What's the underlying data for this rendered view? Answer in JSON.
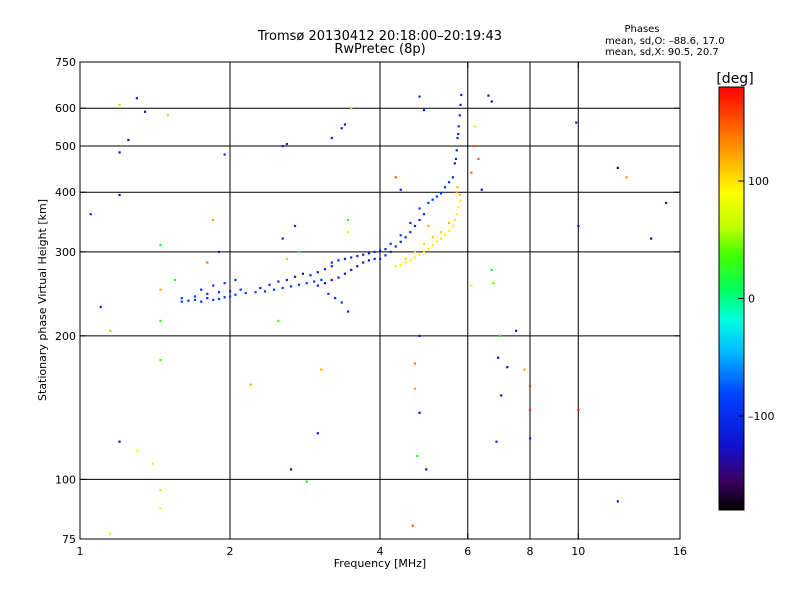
{
  "title_line1": "Tromsø 20130412 20:18:00–20:19:43",
  "title_line2": "RwPretec (8p)",
  "phases_info": {
    "heading": "Phases",
    "line_o": "mean, sd,O: –88.6, 17.0",
    "line_x": "mean, sd,X:  90.5, 20.7"
  },
  "colorbar": {
    "unit": "[deg]",
    "ticks": [
      {
        "value": 100,
        "label": "100"
      },
      {
        "value": 0,
        "label": "0"
      },
      {
        "value": -100,
        "label": "–100"
      }
    ],
    "range": [
      -180,
      180
    ]
  },
  "chart_data": {
    "type": "scatter",
    "title": "Tromsø 20130412 20:18:00–20:19:43",
    "subtitle": "RwPretec (8p)",
    "xlabel": "Frequency [MHz]",
    "ylabel": "Stationary phase Virtual Height [km]",
    "x_scale": "log",
    "y_scale": "log",
    "xlim": [
      1,
      16
    ],
    "ylim": [
      75,
      750
    ],
    "grid": true,
    "x_ticks": [
      {
        "value": 1,
        "label": "1"
      },
      {
        "value": 2,
        "label": "2"
      },
      {
        "value": 4,
        "label": "4"
      },
      {
        "value": 6,
        "label": "6"
      },
      {
        "value": 8,
        "label": "8"
      },
      {
        "value": 10,
        "label": "10"
      },
      {
        "value": 16,
        "label": "16"
      }
    ],
    "y_ticks": [
      {
        "value": 75,
        "label": "75"
      },
      {
        "value": 100,
        "label": "100"
      },
      {
        "value": 200,
        "label": "200"
      },
      {
        "value": 300,
        "label": "300"
      },
      {
        "value": 400,
        "label": "400"
      },
      {
        "value": 500,
        "label": "500"
      },
      {
        "value": 600,
        "label": "600"
      },
      {
        "value": 750,
        "label": "750"
      }
    ],
    "x_gridlines": [
      2,
      4,
      6,
      8,
      10
    ],
    "y_gridlines": [
      100,
      200,
      300,
      400,
      500,
      600
    ],
    "color_by": "phase [deg]",
    "points": [
      [
        1.6,
        236,
        -90
      ],
      [
        1.65,
        237,
        -95
      ],
      [
        1.7,
        238,
        -85
      ],
      [
        1.75,
        236,
        -90
      ],
      [
        1.8,
        240,
        -100
      ],
      [
        1.85,
        238,
        -92
      ],
      [
        1.9,
        239,
        -88
      ],
      [
        1.95,
        241,
        -96
      ],
      [
        2.0,
        242,
        -90
      ],
      [
        2.05,
        244,
        -85
      ],
      [
        1.6,
        240,
        -88
      ],
      [
        1.7,
        242,
        -94
      ],
      [
        1.8,
        245,
        -86
      ],
      [
        1.9,
        247,
        -92
      ],
      [
        2.0,
        248,
        -98
      ],
      [
        2.1,
        250,
        -93
      ],
      [
        1.75,
        250,
        -95
      ],
      [
        1.85,
        255,
        -100
      ],
      [
        1.95,
        258,
        -90
      ],
      [
        2.05,
        262,
        -95
      ],
      [
        2.15,
        246,
        -90
      ],
      [
        2.25,
        247,
        -88
      ],
      [
        2.35,
        248,
        -94
      ],
      [
        2.45,
        250,
        -92
      ],
      [
        2.55,
        252,
        -90
      ],
      [
        2.65,
        254,
        -95
      ],
      [
        2.75,
        256,
        -88
      ],
      [
        2.85,
        258,
        -90
      ],
      [
        2.95,
        260,
        -94
      ],
      [
        3.05,
        262,
        -92
      ],
      [
        2.3,
        252,
        -110
      ],
      [
        2.4,
        256,
        -108
      ],
      [
        2.5,
        260,
        -112
      ],
      [
        2.6,
        262,
        -106
      ],
      [
        2.7,
        266,
        -110
      ],
      [
        2.8,
        270,
        -114
      ],
      [
        2.9,
        268,
        -108
      ],
      [
        3.0,
        272,
        -112
      ],
      [
        3.1,
        276,
        -106
      ],
      [
        3.2,
        280,
        -110
      ],
      [
        3.0,
        255,
        -120
      ],
      [
        3.1,
        258,
        -118
      ],
      [
        3.2,
        262,
        -122
      ],
      [
        3.3,
        265,
        -116
      ],
      [
        3.4,
        270,
        -120
      ],
      [
        3.5,
        275,
        -118
      ],
      [
        3.6,
        280,
        -122
      ],
      [
        3.7,
        285,
        -116
      ],
      [
        3.8,
        288,
        -120
      ],
      [
        3.9,
        290,
        -118
      ],
      [
        3.2,
        285,
        -112
      ],
      [
        3.3,
        288,
        -110
      ],
      [
        3.4,
        290,
        -114
      ],
      [
        3.5,
        292,
        -108
      ],
      [
        3.6,
        294,
        -112
      ],
      [
        3.7,
        296,
        -110
      ],
      [
        3.8,
        298,
        -114
      ],
      [
        3.9,
        300,
        -108
      ],
      [
        4.0,
        302,
        -112
      ],
      [
        4.1,
        304,
        -110
      ],
      [
        3.15,
        245,
        -95
      ],
      [
        3.25,
        240,
        -100
      ],
      [
        3.35,
        235,
        -98
      ],
      [
        3.45,
        225,
        -100
      ],
      [
        4.0,
        290,
        -100
      ],
      [
        4.1,
        295,
        -105
      ],
      [
        4.2,
        300,
        -98
      ],
      [
        4.3,
        308,
        -102
      ],
      [
        4.4,
        315,
        -100
      ],
      [
        4.5,
        322,
        -104
      ],
      [
        4.6,
        330,
        -98
      ],
      [
        4.7,
        340,
        -102
      ],
      [
        4.8,
        350,
        -100
      ],
      [
        4.9,
        360,
        -104
      ],
      [
        4.2,
        312,
        -95
      ],
      [
        4.4,
        325,
        -92
      ],
      [
        4.6,
        345,
        -96
      ],
      [
        4.8,
        370,
        -94
      ],
      [
        5.0,
        380,
        -98
      ],
      [
        5.2,
        392,
        -92
      ],
      [
        5.4,
        410,
        -96
      ],
      [
        5.5,
        420,
        -94
      ],
      [
        5.3,
        398,
        -98
      ],
      [
        5.1,
        386,
        -92
      ],
      [
        5.6,
        430,
        -110
      ],
      [
        5.65,
        460,
        -108
      ],
      [
        5.7,
        490,
        -112
      ],
      [
        5.72,
        520,
        -106
      ],
      [
        5.75,
        550,
        -110
      ],
      [
        5.78,
        580,
        -114
      ],
      [
        5.8,
        610,
        -108
      ],
      [
        5.82,
        640,
        -112
      ],
      [
        5.68,
        470,
        -106
      ],
      [
        5.74,
        530,
        -110
      ],
      [
        4.3,
        280,
        95
      ],
      [
        4.4,
        282,
        92
      ],
      [
        4.5,
        285,
        98
      ],
      [
        4.6,
        288,
        94
      ],
      [
        4.7,
        292,
        96
      ],
      [
        4.8,
        296,
        92
      ],
      [
        4.9,
        300,
        98
      ],
      [
        5.0,
        304,
        94
      ],
      [
        5.1,
        310,
        96
      ],
      [
        5.2,
        316,
        92
      ],
      [
        5.3,
        320,
        98
      ],
      [
        5.4,
        326,
        94
      ],
      [
        5.5,
        332,
        96
      ],
      [
        5.6,
        340,
        92
      ],
      [
        5.65,
        350,
        98
      ],
      [
        5.7,
        360,
        94
      ],
      [
        5.75,
        372,
        96
      ],
      [
        5.8,
        384,
        92
      ],
      [
        5.78,
        395,
        110
      ],
      [
        5.72,
        410,
        115
      ],
      [
        4.5,
        290,
        105
      ],
      [
        4.7,
        300,
        108
      ],
      [
        4.9,
        312,
        104
      ],
      [
        5.1,
        322,
        110
      ],
      [
        5.3,
        330,
        106
      ],
      [
        5.5,
        345,
        112
      ],
      [
        5.7,
        400,
        120
      ],
      [
        6.1,
        440,
        140
      ],
      [
        6.3,
        470,
        145
      ],
      [
        6.15,
        500,
        150
      ],
      [
        1.45,
        250,
        120
      ],
      [
        1.55,
        262,
        25
      ],
      [
        1.8,
        285,
        140
      ],
      [
        2.6,
        290,
        110
      ],
      [
        3.5,
        600,
        110
      ],
      [
        3.2,
        520,
        -110
      ],
      [
        3.35,
        545,
        -115
      ],
      [
        3.4,
        555,
        -120
      ],
      [
        2.55,
        500,
        -118
      ],
      [
        2.6,
        505,
        -110
      ],
      [
        1.3,
        630,
        -110
      ],
      [
        1.35,
        590,
        -125
      ],
      [
        1.1,
        230,
        -100
      ],
      [
        1.05,
        360,
        -110
      ],
      [
        1.2,
        395,
        -135
      ],
      [
        1.2,
        485,
        -130
      ],
      [
        1.25,
        515,
        -140
      ],
      [
        1.95,
        480,
        -110
      ],
      [
        4.8,
        635,
        -110
      ],
      [
        4.9,
        595,
        -115
      ],
      [
        4.8,
        200,
        -120
      ],
      [
        4.7,
        175,
        140
      ],
      [
        4.7,
        155,
        120
      ],
      [
        4.8,
        138,
        -140
      ],
      [
        4.65,
        80,
        150
      ],
      [
        4.75,
        112,
        20
      ],
      [
        4.95,
        105,
        -130
      ],
      [
        6.6,
        638,
        -130
      ],
      [
        6.7,
        620,
        -140
      ],
      [
        6.4,
        405,
        -130
      ],
      [
        7.2,
        172,
        -125
      ],
      [
        7.0,
        150,
        -130
      ],
      [
        7.5,
        205,
        -110
      ],
      [
        7.8,
        170,
        120
      ],
      [
        8.0,
        157,
        160
      ],
      [
        8.0,
        140,
        165
      ],
      [
        8.0,
        122,
        -110
      ],
      [
        9.9,
        560,
        -110
      ],
      [
        10.0,
        340,
        -120
      ],
      [
        10.0,
        140,
        170
      ],
      [
        12,
        450,
        -130
      ],
      [
        12.5,
        430,
        130
      ],
      [
        14,
        320,
        -140
      ],
      [
        15,
        380,
        -130
      ],
      [
        12,
        90,
        -120
      ],
      [
        2.2,
        158,
        120
      ],
      [
        2.5,
        215,
        40
      ],
      [
        3.05,
        170,
        120
      ],
      [
        3.0,
        125,
        -130
      ],
      [
        2.65,
        105,
        -120
      ],
      [
        2.85,
        99,
        20
      ],
      [
        1.2,
        120,
        -130
      ],
      [
        1.45,
        310,
        20
      ],
      [
        1.45,
        215,
        30
      ],
      [
        1.45,
        178,
        40
      ],
      [
        1.45,
        95,
        60
      ],
      [
        1.45,
        87,
        80
      ],
      [
        1.15,
        77,
        100
      ],
      [
        1.15,
        205,
        50
      ],
      [
        1.3,
        115,
        90
      ],
      [
        1.4,
        108,
        70
      ],
      [
        2.75,
        300,
        10
      ],
      [
        2.55,
        320,
        -110
      ],
      [
        2.7,
        340,
        -100
      ],
      [
        3.45,
        350,
        30
      ],
      [
        3.45,
        330,
        100
      ],
      [
        1.9,
        300,
        -100
      ],
      [
        1.85,
        350,
        120
      ],
      [
        1.5,
        580,
        110
      ],
      [
        1.2,
        610,
        110
      ],
      [
        6.7,
        275,
        10
      ],
      [
        6.75,
        258,
        40
      ],
      [
        6.1,
        255,
        80
      ],
      [
        6.9,
        180,
        -130
      ],
      [
        6.95,
        200,
        20
      ],
      [
        6.85,
        120,
        -100
      ],
      [
        4.3,
        430,
        150
      ],
      [
        4.4,
        405,
        -110
      ],
      [
        5.0,
        340,
        120
      ],
      [
        6.2,
        550,
        60
      ]
    ]
  }
}
